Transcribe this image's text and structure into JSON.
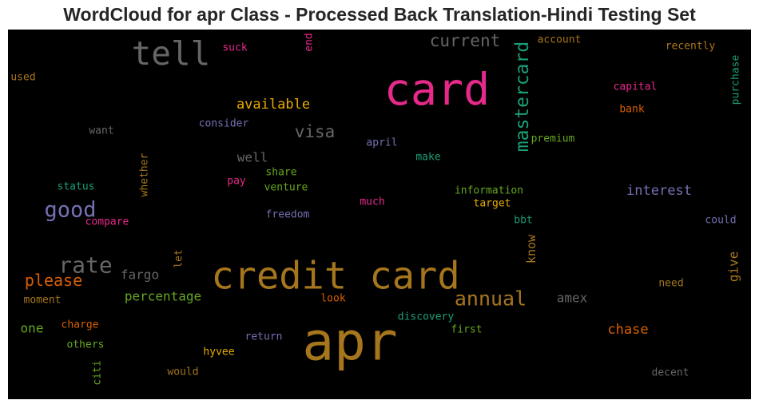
{
  "chart_data": {
    "type": "wordcloud",
    "title": "WordCloud for apr Class - Processed Back Translation-Hindi Testing Set",
    "background": "#000000",
    "colormap": "Dark2",
    "words": [
      {
        "text": "apr",
        "color": "#a6761d",
        "rotate": false
      },
      {
        "text": "credit card",
        "color": "#a6761d",
        "rotate": false
      },
      {
        "text": "card",
        "color": "#e7298a",
        "rotate": false
      },
      {
        "text": "tell",
        "color": "#666666",
        "rotate": false
      },
      {
        "text": "mastercard",
        "color": "#1b9e77",
        "rotate": true
      },
      {
        "text": "current",
        "color": "#666666",
        "rotate": false
      },
      {
        "text": "annual",
        "color": "#a6761d",
        "rotate": false
      },
      {
        "text": "rate",
        "color": "#666666",
        "rotate": false
      },
      {
        "text": "good",
        "color": "#7570b3",
        "rotate": false
      },
      {
        "text": "please",
        "color": "#d95f02",
        "rotate": false
      },
      {
        "text": "visa",
        "color": "#666666",
        "rotate": false
      },
      {
        "text": "available",
        "color": "#e6ab02",
        "rotate": false
      },
      {
        "text": "interest",
        "color": "#7570b3",
        "rotate": false
      },
      {
        "text": "chase",
        "color": "#d95f02",
        "rotate": false
      },
      {
        "text": "percentage",
        "color": "#66a61e",
        "rotate": false
      },
      {
        "text": "fargo",
        "color": "#666666",
        "rotate": false
      },
      {
        "text": "amex",
        "color": "#666666",
        "rotate": false
      },
      {
        "text": "well",
        "color": "#666666",
        "rotate": false
      },
      {
        "text": "give",
        "color": "#a6761d",
        "rotate": true
      },
      {
        "text": "know",
        "color": "#a6761d",
        "rotate": true
      },
      {
        "text": "one",
        "color": "#66a61e",
        "rotate": false
      },
      {
        "text": "account",
        "color": "#a6761d",
        "rotate": false
      },
      {
        "text": "recently",
        "color": "#a6761d",
        "rotate": false
      },
      {
        "text": "capital",
        "color": "#e7298a",
        "rotate": false
      },
      {
        "text": "bank",
        "color": "#d95f02",
        "rotate": false
      },
      {
        "text": "purchase",
        "color": "#1b9e77",
        "rotate": true
      },
      {
        "text": "premium",
        "color": "#66a61e",
        "rotate": false
      },
      {
        "text": "make",
        "color": "#1b9e77",
        "rotate": false
      },
      {
        "text": "april",
        "color": "#7570b3",
        "rotate": false
      },
      {
        "text": "consider",
        "color": "#7570b3",
        "rotate": false
      },
      {
        "text": "want",
        "color": "#666666",
        "rotate": false
      },
      {
        "text": "used",
        "color": "#a6761d",
        "rotate": false
      },
      {
        "text": "suck",
        "color": "#e7298a",
        "rotate": false
      },
      {
        "text": "end",
        "color": "#e7298a",
        "rotate": true
      },
      {
        "text": "whether",
        "color": "#a6761d",
        "rotate": true
      },
      {
        "text": "share",
        "color": "#66a61e",
        "rotate": false
      },
      {
        "text": "venture",
        "color": "#66a61e",
        "rotate": false
      },
      {
        "text": "pay",
        "color": "#e7298a",
        "rotate": false
      },
      {
        "text": "status",
        "color": "#1b9e77",
        "rotate": false
      },
      {
        "text": "information",
        "color": "#66a61e",
        "rotate": false
      },
      {
        "text": "target",
        "color": "#e6ab02",
        "rotate": false
      },
      {
        "text": "much",
        "color": "#e7298a",
        "rotate": false
      },
      {
        "text": "freedom",
        "color": "#7570b3",
        "rotate": false
      },
      {
        "text": "compare",
        "color": "#e7298a",
        "rotate": false
      },
      {
        "text": "bbt",
        "color": "#1b9e77",
        "rotate": false
      },
      {
        "text": "could",
        "color": "#7570b3",
        "rotate": false
      },
      {
        "text": "let",
        "color": "#a6761d",
        "rotate": true
      },
      {
        "text": "need",
        "color": "#a6761d",
        "rotate": false
      },
      {
        "text": "moment",
        "color": "#a6761d",
        "rotate": false
      },
      {
        "text": "look",
        "color": "#d95f02",
        "rotate": false
      },
      {
        "text": "discovery",
        "color": "#1b9e77",
        "rotate": false
      },
      {
        "text": "first",
        "color": "#66a61e",
        "rotate": false
      },
      {
        "text": "charge",
        "color": "#d95f02",
        "rotate": false
      },
      {
        "text": "others",
        "color": "#66a61e",
        "rotate": false
      },
      {
        "text": "return",
        "color": "#7570b3",
        "rotate": false
      },
      {
        "text": "hyvee",
        "color": "#e6ab02",
        "rotate": false
      },
      {
        "text": "would",
        "color": "#a6761d",
        "rotate": false
      },
      {
        "text": "citi",
        "color": "#66a61e",
        "rotate": true
      },
      {
        "text": "decent",
        "color": "#666666",
        "rotate": false
      }
    ]
  }
}
